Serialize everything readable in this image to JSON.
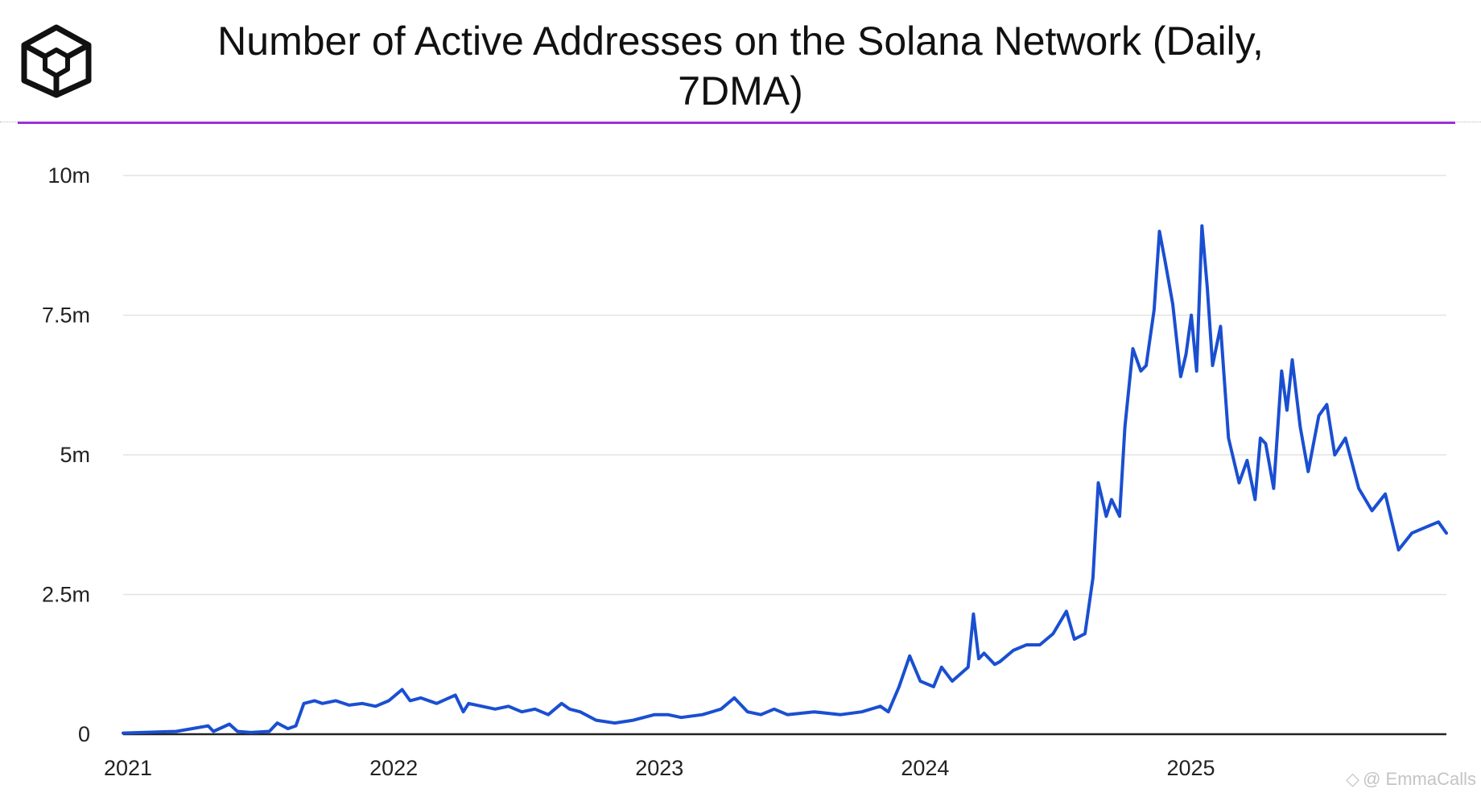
{
  "header": {
    "title": "Number of Active Addresses on the Solana Network (Daily, 7DMA)",
    "accent_color": "#9b30d9"
  },
  "logo": {
    "icon": "hexagon-cube-logo-icon"
  },
  "watermark": {
    "icon": "diamond-watermark-icon",
    "text": "@ EmmaCalls"
  },
  "chart_data": {
    "type": "line",
    "title": "Number of Active Addresses on the Solana Network (Daily, 7DMA)",
    "xlabel": "",
    "ylabel": "",
    "x_ticks": [
      "2021",
      "2022",
      "2023",
      "2024",
      "2025"
    ],
    "x_tick_values": [
      2021,
      2022,
      2023,
      2024,
      2025
    ],
    "y_ticks": [
      "0",
      "2.5m",
      "5m",
      "7.5m",
      "10m"
    ],
    "y_tick_values": [
      0,
      2.5,
      5,
      7.5,
      10
    ],
    "y_unit": "millions",
    "xlim": [
      2021,
      2025.98
    ],
    "ylim": [
      0,
      10
    ],
    "grid": true,
    "line_color": "#1a4fd1",
    "series": [
      {
        "name": "Active Addresses (7DMA)",
        "x": [
          2021.0,
          2021.2,
          2021.32,
          2021.34,
          2021.4,
          2021.43,
          2021.48,
          2021.55,
          2021.58,
          2021.62,
          2021.65,
          2021.68,
          2021.72,
          2021.75,
          2021.8,
          2021.85,
          2021.9,
          2021.95,
          2022.0,
          2022.05,
          2022.08,
          2022.12,
          2022.18,
          2022.25,
          2022.28,
          2022.3,
          2022.35,
          2022.4,
          2022.45,
          2022.5,
          2022.55,
          2022.6,
          2022.65,
          2022.68,
          2022.72,
          2022.78,
          2022.85,
          2022.92,
          2023.0,
          2023.05,
          2023.1,
          2023.18,
          2023.25,
          2023.3,
          2023.35,
          2023.4,
          2023.45,
          2023.5,
          2023.6,
          2023.7,
          2023.78,
          2023.85,
          2023.88,
          2023.92,
          2023.96,
          2024.0,
          2024.05,
          2024.08,
          2024.12,
          2024.18,
          2024.2,
          2024.22,
          2024.24,
          2024.28,
          2024.3,
          2024.35,
          2024.4,
          2024.45,
          2024.5,
          2024.55,
          2024.58,
          2024.62,
          2024.65,
          2024.67,
          2024.7,
          2024.72,
          2024.75,
          2024.77,
          2024.8,
          2024.83,
          2024.85,
          2024.88,
          2024.9,
          2024.92,
          2024.95,
          2024.98,
          2025.0,
          2025.02,
          2025.04,
          2025.06,
          2025.08,
          2025.1,
          2025.13,
          2025.16,
          2025.2,
          2025.23,
          2025.26,
          2025.28,
          2025.3,
          2025.33,
          2025.36,
          2025.38,
          2025.4,
          2025.43,
          2025.46,
          2025.5,
          2025.53,
          2025.56,
          2025.6,
          2025.65,
          2025.7,
          2025.75,
          2025.8,
          2025.85,
          2025.9,
          2025.95,
          2025.98
        ],
        "values": [
          0.02,
          0.05,
          0.15,
          0.05,
          0.18,
          0.05,
          0.03,
          0.05,
          0.2,
          0.1,
          0.15,
          0.55,
          0.6,
          0.55,
          0.6,
          0.52,
          0.55,
          0.5,
          0.6,
          0.8,
          0.6,
          0.65,
          0.55,
          0.7,
          0.4,
          0.55,
          0.5,
          0.45,
          0.5,
          0.4,
          0.45,
          0.35,
          0.55,
          0.45,
          0.4,
          0.25,
          0.2,
          0.25,
          0.35,
          0.35,
          0.3,
          0.35,
          0.45,
          0.65,
          0.4,
          0.35,
          0.45,
          0.35,
          0.4,
          0.35,
          0.4,
          0.5,
          0.4,
          0.85,
          1.4,
          0.95,
          0.85,
          1.2,
          0.95,
          1.2,
          2.15,
          1.35,
          1.45,
          1.25,
          1.3,
          1.5,
          1.6,
          1.6,
          1.8,
          2.2,
          1.7,
          1.8,
          2.8,
          4.5,
          3.9,
          4.2,
          3.9,
          5.5,
          6.9,
          6.5,
          6.6,
          7.6,
          9.0,
          8.5,
          7.7,
          6.4,
          6.8,
          7.5,
          6.5,
          9.1,
          8.0,
          6.6,
          7.3,
          5.3,
          4.5,
          4.9,
          4.2,
          5.3,
          5.2,
          4.4,
          6.5,
          5.8,
          6.7,
          5.5,
          4.7,
          5.7,
          5.9,
          5.0,
          5.3,
          4.4,
          4.0,
          4.3,
          3.3,
          3.6,
          3.7,
          3.8,
          3.6
        ]
      }
    ]
  }
}
